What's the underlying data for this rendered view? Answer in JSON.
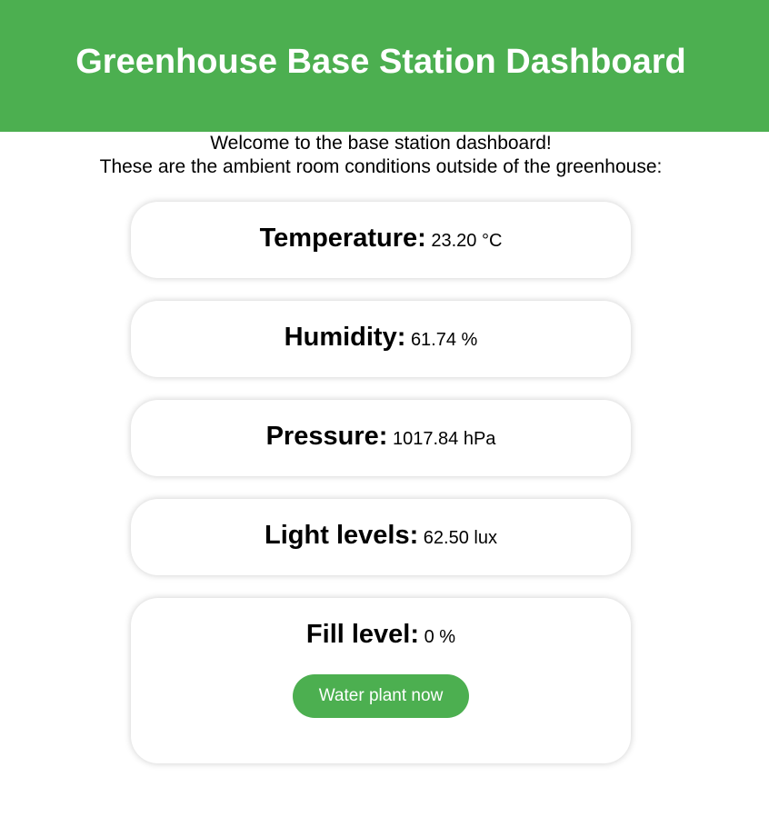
{
  "header": {
    "title": "Greenhouse Base Station Dashboard",
    "background_color": "#4caf50"
  },
  "intro": {
    "line1": "Welcome to the base station dashboard!",
    "line2": "These are the ambient room conditions outside of the greenhouse:"
  },
  "readings": [
    {
      "label": "Temperature:",
      "value": "23.20 °C"
    },
    {
      "label": "Humidity:",
      "value": "61.74 %"
    },
    {
      "label": "Pressure:",
      "value": "1017.84 hPa"
    },
    {
      "label": "Light levels:",
      "value": "62.50 lux"
    },
    {
      "label": "Fill level:",
      "value": "0 %"
    }
  ],
  "actions": {
    "water_button_label": "Water plant now",
    "button_color": "#4caf50"
  }
}
